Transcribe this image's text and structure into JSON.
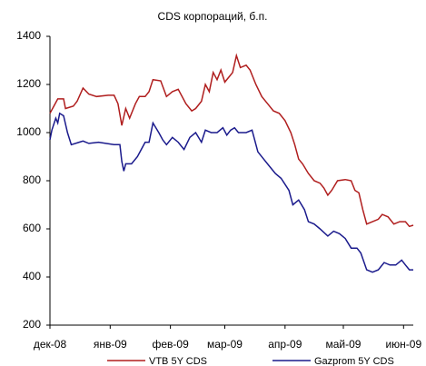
{
  "chart_data": {
    "type": "line",
    "title": "CDS корпораций, б.п.",
    "xlim": [
      0,
      187
    ],
    "xticks": [
      {
        "value": 0,
        "label": "дек-08"
      },
      {
        "value": 31,
        "label": "янв-09"
      },
      {
        "value": 62,
        "label": "фев-09"
      },
      {
        "value": 90,
        "label": "мар-09"
      },
      {
        "value": 121,
        "label": "апр-09"
      },
      {
        "value": 151,
        "label": "май-09"
      },
      {
        "value": 182,
        "label": "июн-09"
      }
    ],
    "ylim": [
      200,
      1400
    ],
    "yticks": [
      200,
      400,
      600,
      800,
      1000,
      1200,
      1400
    ],
    "legend": "bottom",
    "series": [
      {
        "name": "VTB 5Y CDS",
        "color": "#b01e1e",
        "x": [
          0,
          2,
          4,
          7,
          8,
          12,
          14,
          17,
          20,
          24,
          30,
          33,
          35,
          37,
          39,
          41,
          44,
          46,
          49,
          51,
          53,
          57,
          60,
          63,
          66,
          70,
          73,
          75,
          78,
          80,
          82,
          84,
          86,
          88,
          90,
          92,
          94,
          96,
          98,
          101,
          103,
          106,
          109,
          112,
          115,
          118,
          121,
          124,
          126,
          128,
          130,
          133,
          136,
          139,
          141,
          143,
          145,
          148,
          152,
          155,
          157,
          159,
          161,
          163,
          166,
          169,
          171,
          174,
          177,
          180,
          183,
          185,
          187
        ],
        "values": [
          1080,
          1110,
          1140,
          1140,
          1100,
          1110,
          1130,
          1185,
          1160,
          1150,
          1155,
          1155,
          1120,
          1030,
          1100,
          1060,
          1120,
          1150,
          1150,
          1170,
          1220,
          1215,
          1150,
          1170,
          1180,
          1120,
          1090,
          1100,
          1130,
          1200,
          1170,
          1250,
          1220,
          1260,
          1210,
          1230,
          1250,
          1320,
          1270,
          1280,
          1260,
          1200,
          1150,
          1120,
          1090,
          1080,
          1050,
          1000,
          950,
          890,
          870,
          830,
          800,
          790,
          770,
          740,
          760,
          800,
          805,
          800,
          760,
          750,
          680,
          620,
          630,
          640,
          660,
          650,
          620,
          630,
          630,
          610,
          615
        ]
      },
      {
        "name": "Gazprom 5Y CDS",
        "color": "#1a1a8c",
        "x": [
          0,
          1,
          3,
          4,
          5,
          7,
          9,
          11,
          15,
          17,
          20,
          25,
          33,
          36,
          37,
          38,
          39,
          42,
          45,
          47,
          49,
          51,
          53,
          56,
          58,
          60,
          63,
          66,
          69,
          72,
          75,
          78,
          80,
          83,
          86,
          89,
          91,
          93,
          95,
          97,
          101,
          104,
          107,
          110,
          113,
          116,
          119,
          123,
          125,
          128,
          131,
          133,
          136,
          139,
          143,
          146,
          149,
          152,
          155,
          158,
          160,
          163,
          166,
          169,
          172,
          175,
          178,
          181,
          183,
          185,
          187
        ],
        "values": [
          970,
          1010,
          1060,
          1040,
          1080,
          1070,
          1000,
          950,
          960,
          965,
          955,
          960,
          950,
          950,
          880,
          840,
          870,
          870,
          900,
          930,
          960,
          960,
          1040,
          1000,
          970,
          950,
          980,
          960,
          930,
          980,
          1000,
          960,
          1010,
          1000,
          1000,
          1020,
          990,
          1010,
          1020,
          1000,
          1000,
          1010,
          920,
          890,
          860,
          830,
          810,
          760,
          700,
          720,
          680,
          630,
          620,
          600,
          570,
          590,
          580,
          560,
          520,
          520,
          500,
          430,
          420,
          430,
          460,
          450,
          450,
          470,
          450,
          430,
          430
        ]
      }
    ]
  }
}
